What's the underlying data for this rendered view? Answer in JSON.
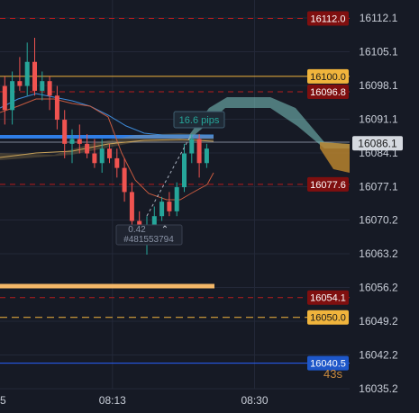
{
  "colors": {
    "background": "#161a25",
    "grid": "#232838",
    "up": "#26a69a",
    "down": "#ef5350",
    "red_line": "#b71c1c",
    "orange_line": "#d9a23a",
    "blue_line": "#2962ff",
    "cloud_up": "#80cbc4",
    "cloud_down": "#c28a2e"
  },
  "axis": {
    "y_min": 16035.2,
    "y_max": 16112.1,
    "y_ticks": [
      "16112.1",
      "16105.1",
      "16098.1",
      "16091.1",
      "16084.1",
      "16077.1",
      "16070.2",
      "16063.2",
      "16056.2",
      "16049.2",
      "16042.2",
      "16035.2"
    ],
    "x_ticks": [
      {
        "label": "08:13",
        "index": 16
      },
      {
        "label": "08:30",
        "index": 35
      }
    ],
    "x_partial_label": "5"
  },
  "price_labels": [
    {
      "text": "16112.0",
      "value": 16112.0,
      "style": "red"
    },
    {
      "text": "16100.0",
      "value": 16100.0,
      "style": "orange"
    },
    {
      "text": "16096.8",
      "value": 16096.8,
      "style": "red"
    },
    {
      "text": "16086.1",
      "value": 16086.1,
      "style": "current"
    },
    {
      "text": "16077.6",
      "value": 16077.6,
      "style": "red"
    },
    {
      "text": "16054.1",
      "value": 16054.1,
      "style": "red"
    },
    {
      "text": "16050.0",
      "value": 16050.0,
      "style": "orange"
    },
    {
      "text": "16040.5",
      "value": 16040.5,
      "style": "blue"
    }
  ],
  "countdown": "43s",
  "measure": {
    "pips_label": "16.6 pips",
    "value_label": "0.42",
    "order_id": "#481553794"
  },
  "chart_data": {
    "type": "candlestick",
    "candles": [
      {
        "o": 16091,
        "h": 16102,
        "l": 16088,
        "c": 16098
      },
      {
        "o": 16098,
        "h": 16100,
        "l": 16090,
        "c": 16093
      },
      {
        "o": 16093,
        "h": 16101,
        "l": 16090,
        "c": 16099
      },
      {
        "o": 16099,
        "h": 16104,
        "l": 16097,
        "c": 16098
      },
      {
        "o": 16098,
        "h": 16107,
        "l": 16096,
        "c": 16103
      },
      {
        "o": 16103,
        "h": 16108,
        "l": 16096,
        "c": 16097
      },
      {
        "o": 16097,
        "h": 16101,
        "l": 16095,
        "c": 16099
      },
      {
        "o": 16099,
        "h": 16100,
        "l": 16093,
        "c": 16096
      },
      {
        "o": 16096,
        "h": 16098,
        "l": 16089,
        "c": 16091
      },
      {
        "o": 16091,
        "h": 16093,
        "l": 16083,
        "c": 16086
      },
      {
        "o": 16086,
        "h": 16089,
        "l": 16082,
        "c": 16087
      },
      {
        "o": 16087,
        "h": 16090,
        "l": 16084,
        "c": 16086
      },
      {
        "o": 16086,
        "h": 16088,
        "l": 16083,
        "c": 16084
      },
      {
        "o": 16084,
        "h": 16087,
        "l": 16081,
        "c": 16082
      },
      {
        "o": 16082,
        "h": 16087,
        "l": 16080,
        "c": 16085
      },
      {
        "o": 16085,
        "h": 16086,
        "l": 16082,
        "c": 16083
      },
      {
        "o": 16083,
        "h": 16085,
        "l": 16079,
        "c": 16081
      },
      {
        "o": 16081,
        "h": 16083,
        "l": 16074,
        "c": 16076
      },
      {
        "o": 16076,
        "h": 16078,
        "l": 16069,
        "c": 16070
      },
      {
        "o": 16070,
        "h": 16072,
        "l": 16066,
        "c": 16068
      },
      {
        "o": 16068,
        "h": 16071,
        "l": 16063,
        "c": 16069
      },
      {
        "o": 16069,
        "h": 16073,
        "l": 16067,
        "c": 16071
      },
      {
        "o": 16071,
        "h": 16075,
        "l": 16070,
        "c": 16074
      },
      {
        "o": 16074,
        "h": 16076,
        "l": 16071,
        "c": 16072
      },
      {
        "o": 16072,
        "h": 16078,
        "l": 16071,
        "c": 16077
      },
      {
        "o": 16077,
        "h": 16086,
        "l": 16076,
        "c": 16084
      },
      {
        "o": 16084,
        "h": 16088,
        "l": 16082,
        "c": 16087
      },
      {
        "o": 16087,
        "h": 16088,
        "l": 16079,
        "c": 16082
      },
      {
        "o": 16082,
        "h": 16086,
        "l": 16081,
        "c": 16085
      }
    ]
  }
}
